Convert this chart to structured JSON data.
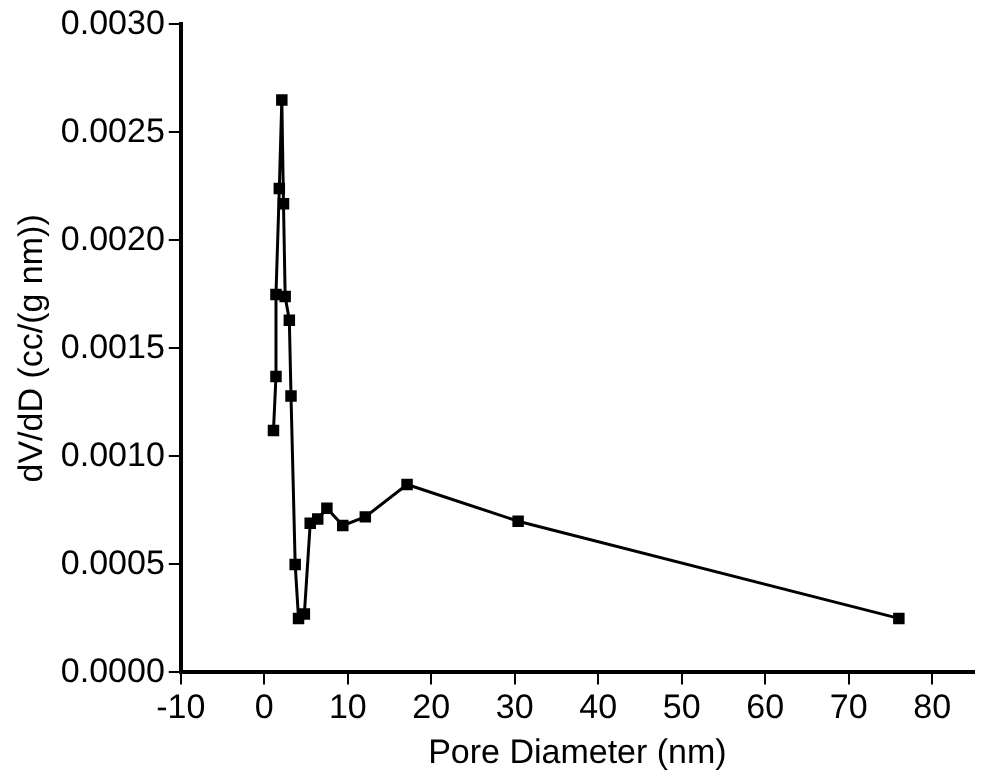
{
  "chart_data": {
    "type": "line",
    "xlabel": "Pore Diameter (nm)",
    "ylabel": "dV/dD (cc/(g nm))",
    "x": [
      1.1,
      1.4,
      1.4,
      1.8,
      2.1,
      2.3,
      2.5,
      3.0,
      3.2,
      3.7,
      4.1,
      4.8,
      5.5,
      6.4,
      7.5,
      9.4,
      12.1,
      17.1,
      30.4,
      76.0
    ],
    "series": [
      {
        "color": "#000000",
        "values": [
          0.00112,
          0.00137,
          0.00175,
          0.00224,
          0.00265,
          0.00217,
          0.00174,
          0.00163,
          0.00128,
          0.0005,
          0.00025,
          0.00027,
          0.00069,
          0.00071,
          0.00076,
          0.00068,
          0.00072,
          0.00087,
          0.0007,
          0.00025
        ]
      }
    ],
    "xlim": [
      -10,
      85
    ],
    "xticks": [
      -10,
      0,
      10,
      20,
      30,
      40,
      50,
      60,
      70,
      80
    ],
    "ylim": [
      0,
      0.003
    ],
    "yticks": [
      {
        "value": 0,
        "label": "0.0000"
      },
      {
        "value": 0.0005,
        "label": "0.0005"
      },
      {
        "value": 0.001,
        "label": "0.0010"
      },
      {
        "value": 0.0015,
        "label": "0.0015"
      },
      {
        "value": 0.002,
        "label": "0.0020"
      },
      {
        "value": 0.0025,
        "label": "0.0025"
      },
      {
        "value": 0.003,
        "label": "0.0030"
      }
    ],
    "grid": false,
    "legend": false,
    "marker": "square",
    "line_style": "solid"
  }
}
